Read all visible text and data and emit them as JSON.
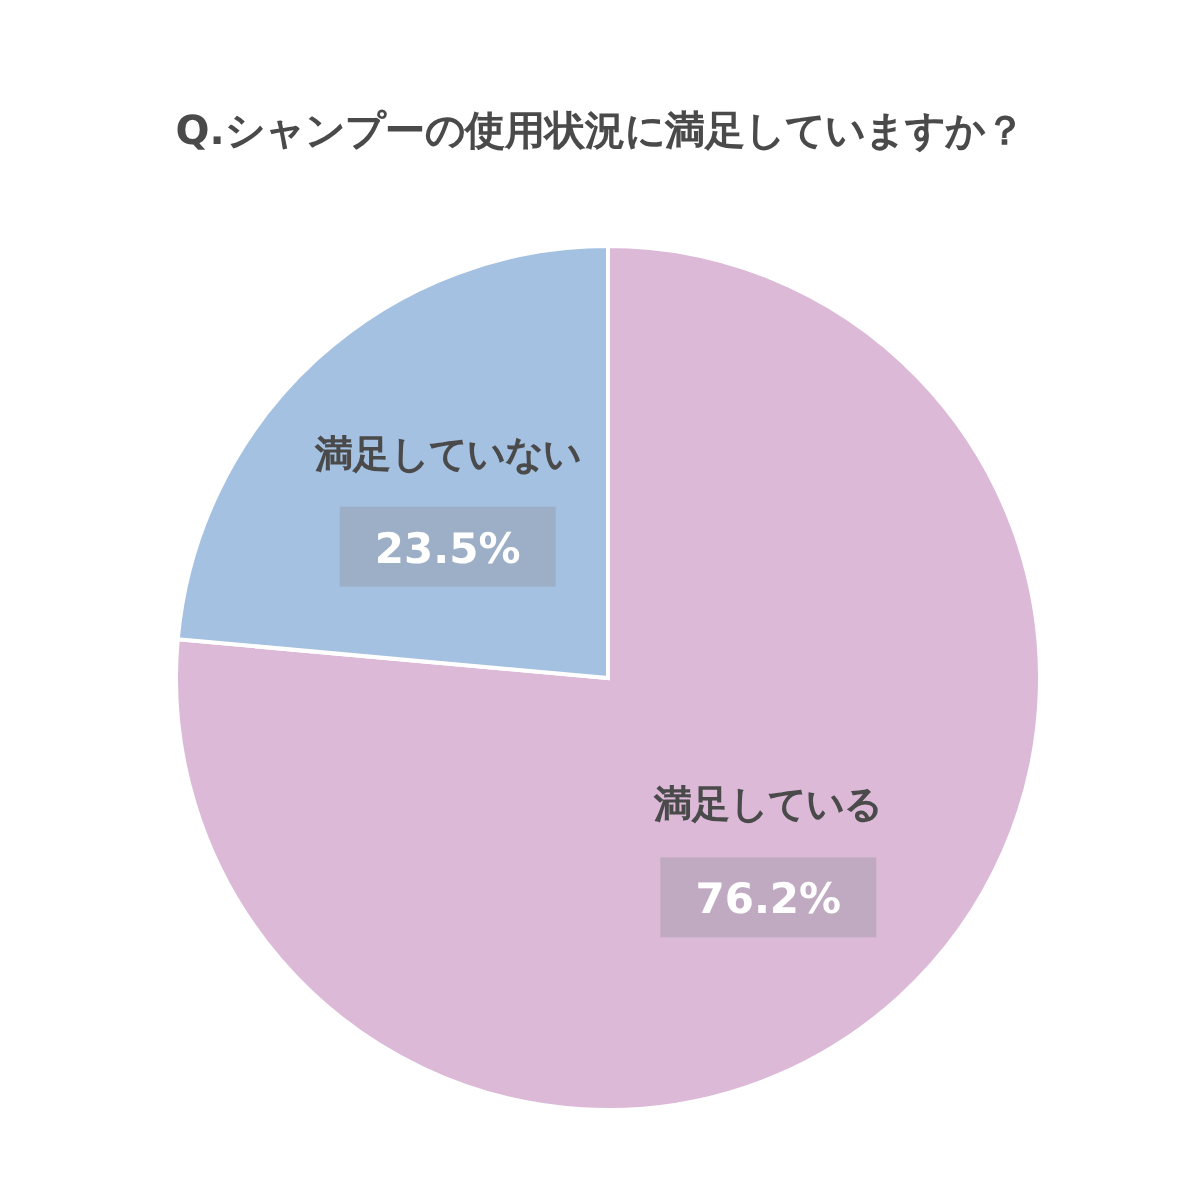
{
  "chart_data": {
    "type": "pie",
    "title": "Q.シャンプーの使用状況に満足していますか？",
    "categories": [
      "満足している",
      "満足していない"
    ],
    "values": [
      76.2,
      23.5
    ],
    "colors": [
      "#dbb9d7",
      "#a4c1e1"
    ],
    "value_labels": [
      "76.2%",
      "23.5%"
    ]
  }
}
